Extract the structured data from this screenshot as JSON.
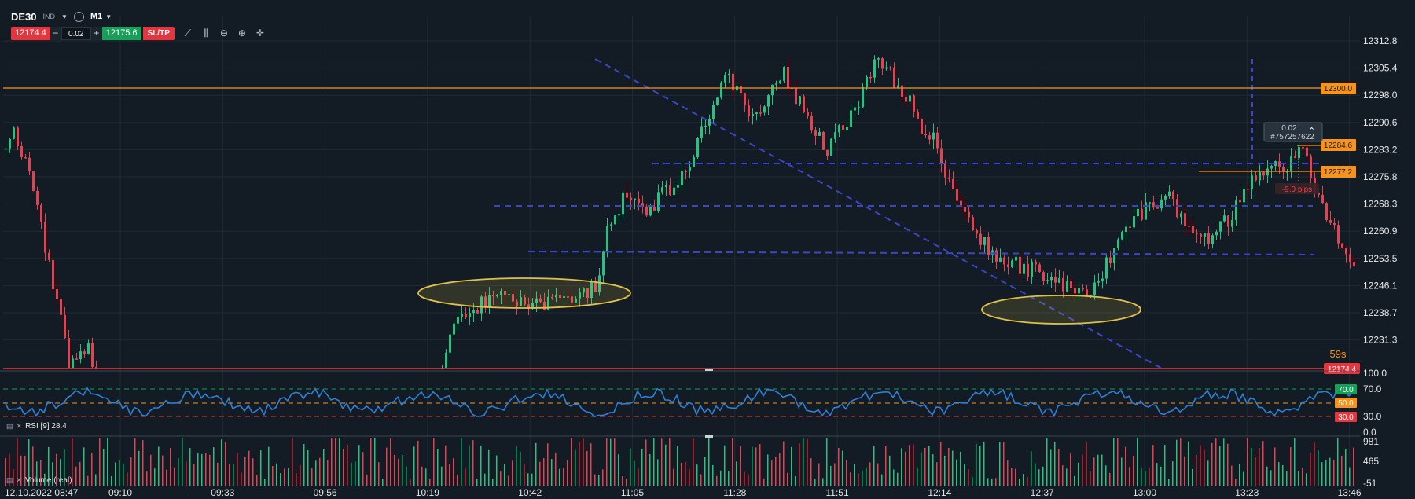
{
  "toolbar": {
    "symbol": "DE30",
    "market": "IND",
    "info_icon": "info-icon",
    "timeframe": "M1",
    "bid": "12174.4",
    "minus": "−",
    "quantity": "0.02",
    "plus": "+",
    "ask": "12175.6",
    "sltp": "SL/TP",
    "tools": [
      "line-chart-icon",
      "indicators-icon",
      "zoom-out-icon",
      "zoom-in-icon",
      "crosshair-icon"
    ]
  },
  "price_axis": {
    "labels": [
      "12312.8",
      "12305.4",
      "12298.0",
      "12290.6",
      "12283.2",
      "12275.8",
      "12268.3",
      "12260.9",
      "12253.5",
      "12246.1",
      "12238.7",
      "12231.3"
    ],
    "values": [
      12312.8,
      12305.4,
      12298.0,
      12290.6,
      12283.2,
      12275.8,
      12268.3,
      12260.9,
      12253.5,
      12246.1,
      12238.7,
      12231.3
    ],
    "current_price": "12174.4",
    "countdown": "59s"
  },
  "levels": [
    {
      "label": "12300.0",
      "price": 12300.0,
      "color": "#f7931a"
    },
    {
      "label": "12284.6",
      "price": 12284.6,
      "color": "#f7931a"
    },
    {
      "label": "12277.2",
      "price": 12277.2,
      "color": "#f7931a"
    }
  ],
  "position": {
    "volume": "0.02",
    "order_id": "#757257622",
    "pips": "-9.0 pips"
  },
  "time_axis": {
    "start": "12.10.2022 08:47",
    "labels": [
      "09:10",
      "09:33",
      "09:56",
      "10:19",
      "10:42",
      "11:05",
      "11:28",
      "11:51",
      "12:14",
      "12:37",
      "13:00",
      "13:23",
      "13:46"
    ]
  },
  "rsi": {
    "label": "RSI [9] 28.4",
    "axis": [
      "100.0",
      "70.0",
      "30.0",
      "0.0"
    ],
    "badges": [
      {
        "label": "70.0",
        "color": "#16a05a"
      },
      {
        "label": "50.0",
        "color": "#f7931a"
      },
      {
        "label": "30.0",
        "color": "#e5363f"
      }
    ]
  },
  "volume": {
    "label": "Volume (real)",
    "axis": [
      "981",
      "465",
      "-51"
    ]
  },
  "colors": {
    "background": "#131c24",
    "bull": "#26c281",
    "bear": "#e5414f",
    "trend": "#3a46c8",
    "ellipse": "#e0c04a",
    "rsi": "#2f7fd6"
  }
}
